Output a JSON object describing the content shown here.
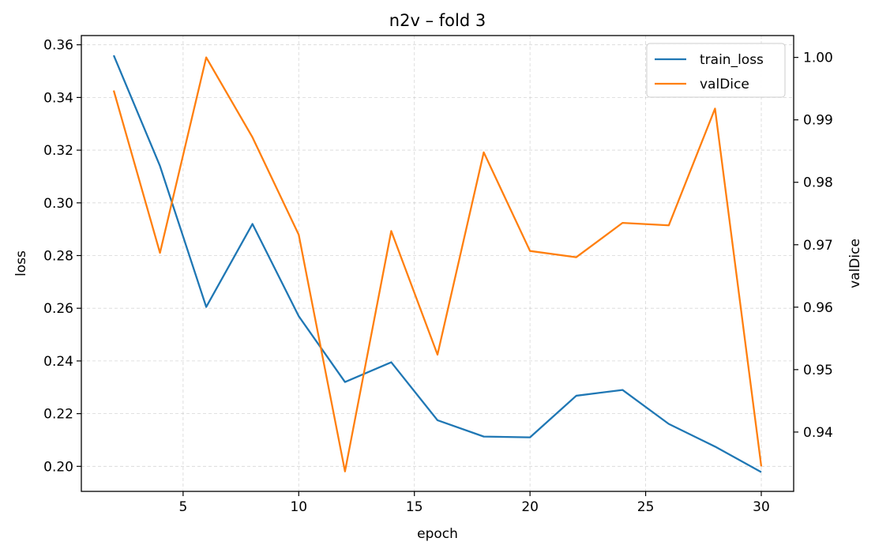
{
  "chart_data": {
    "type": "line",
    "title": "n2v – fold 3",
    "xlabel": "epoch",
    "ylabel_left": "loss",
    "ylabel_right": "valDice",
    "x": [
      2,
      4,
      6,
      8,
      10,
      12,
      14,
      16,
      18,
      20,
      22,
      24,
      26,
      28,
      30
    ],
    "xlim": [
      0.6,
      31.4
    ],
    "ylim_left": [
      0.1905,
      0.3635
    ],
    "ylim_right": [
      0.9305,
      1.0035
    ],
    "x_ticks": [
      5,
      10,
      15,
      20,
      25,
      30
    ],
    "y_ticks_left": [
      0.2,
      0.22,
      0.24,
      0.26,
      0.28,
      0.3,
      0.32,
      0.34,
      0.36
    ],
    "y_ticks_right": [
      0.94,
      0.95,
      0.96,
      0.97,
      0.98,
      0.99,
      1.0
    ],
    "x_tick_labels": [
      "5",
      "10",
      "15",
      "20",
      "25",
      "30"
    ],
    "y_tick_labels_left": [
      "0.20",
      "0.22",
      "0.24",
      "0.26",
      "0.28",
      "0.30",
      "0.32",
      "0.34",
      "0.36"
    ],
    "y_tick_labels_right": [
      "0.94",
      "0.95",
      "0.96",
      "0.97",
      "0.98",
      "0.99",
      "1.00"
    ],
    "grid": true,
    "legend_position": "top-right",
    "series": [
      {
        "name": "train_loss",
        "axis": "left",
        "color": "#1f77b4",
        "values": [
          0.356,
          0.314,
          0.2605,
          0.292,
          0.257,
          0.232,
          0.2395,
          0.2175,
          0.2113,
          0.211,
          0.2268,
          0.229,
          0.2161,
          0.2075,
          0.1978
        ]
      },
      {
        "name": "valDice",
        "axis": "right",
        "color": "#ff7f0e",
        "values": [
          0.9947,
          0.9687,
          1.0,
          0.9872,
          0.9716,
          0.9337,
          0.9722,
          0.9524,
          0.9848,
          0.969,
          0.968,
          0.9735,
          0.9731,
          0.9918,
          0.9345
        ]
      }
    ]
  }
}
